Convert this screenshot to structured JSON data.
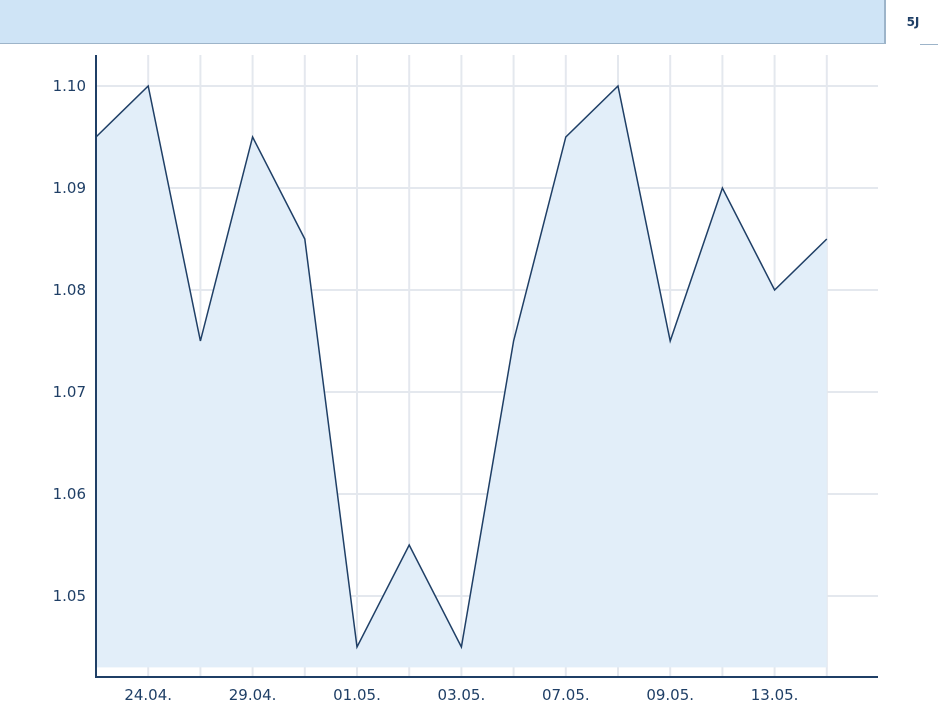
{
  "header": {
    "range_tab_label": "5J"
  },
  "colors": {
    "line": "#1f3f66",
    "area_fill": "#e2eef9",
    "grid": "#e4e8ee",
    "axis": "#1f3f66",
    "header_bg": "#cfe4f6"
  },
  "chart_data": {
    "type": "area",
    "title": "",
    "xlabel": "",
    "ylabel": "",
    "grid": true,
    "ylim": [
      1.043,
      1.103
    ],
    "yticks": [
      "1.05",
      "1.06",
      "1.07",
      "1.08",
      "1.09",
      "1.10"
    ],
    "xtick_labels": [
      "24.04.",
      "29.04.",
      "01.05.",
      "03.05.",
      "07.05.",
      "09.05.",
      "13.05."
    ],
    "x": [
      "",
      "24.04.",
      "",
      "29.04.",
      "",
      "01.05.",
      "",
      "03.05.",
      "",
      "07.05.",
      "",
      "09.05.",
      "",
      "13.05.",
      ""
    ],
    "series": [
      {
        "values": [
          1.095,
          1.1,
          1.075,
          1.095,
          1.085,
          1.045,
          1.055,
          1.045,
          1.075,
          1.095,
          1.1,
          1.075,
          1.09,
          1.08,
          1.085
        ]
      }
    ]
  }
}
